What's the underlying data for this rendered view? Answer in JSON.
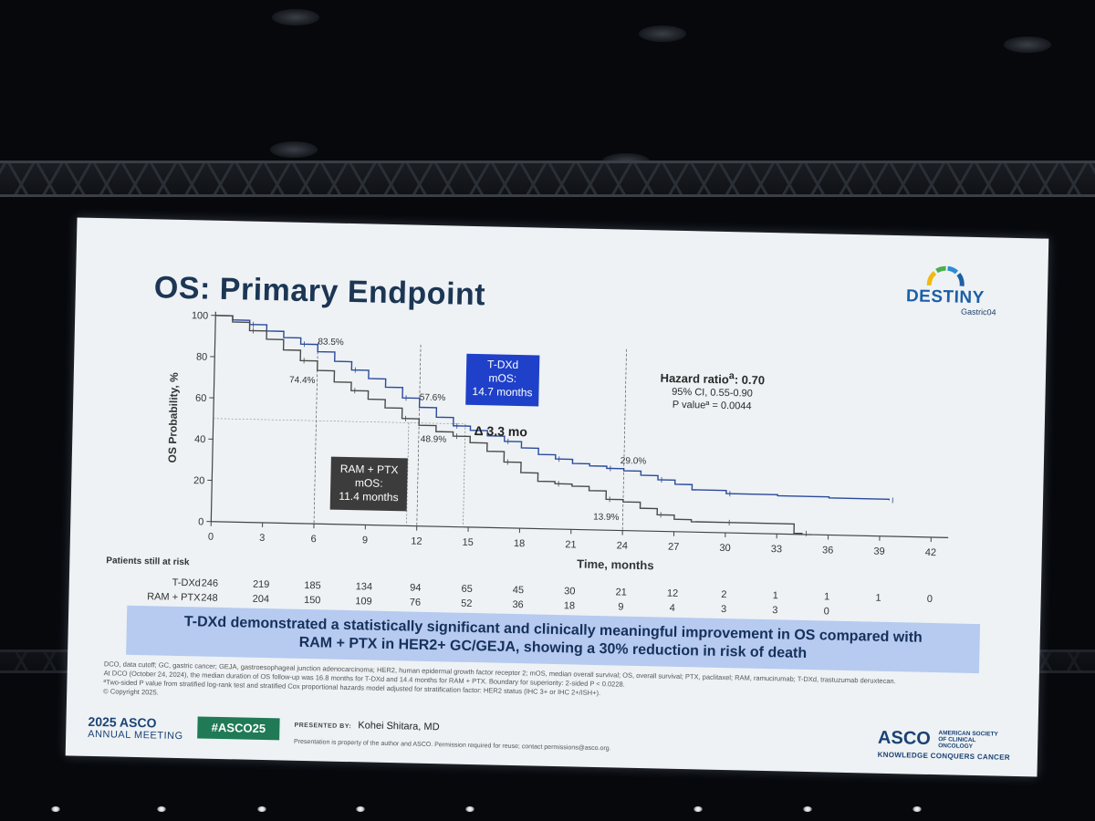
{
  "slide": {
    "title": "OS: Primary Endpoint",
    "logo": {
      "name": "DESTINY",
      "sub": "Gastric04"
    },
    "tdxd_callout": {
      "name": "T-DXd",
      "label": "mOS:",
      "value": "14.7 months"
    },
    "ram_callout": {
      "name": "RAM + PTX",
      "label": "mOS:",
      "value": "11.4 months"
    },
    "delta": "Δ 3.3 mo",
    "hazard": {
      "label": "Hazard ratio",
      "sup": "a",
      "value": ": 0.70",
      "ci": "95% CI, 0.55-0.90",
      "p": "P valueª = 0.0044"
    },
    "risk_table": {
      "title": "Patients still at risk",
      "rows": [
        {
          "label": "T-DXd",
          "values": [
            "246",
            "219",
            "185",
            "134",
            "94",
            "65",
            "45",
            "30",
            "21",
            "12",
            "2",
            "1",
            "1",
            "1",
            "0"
          ]
        },
        {
          "label": "RAM + PTX",
          "values": [
            "248",
            "204",
            "150",
            "109",
            "76",
            "52",
            "36",
            "18",
            "9",
            "4",
            "3",
            "3",
            "0",
            "",
            ""
          ]
        }
      ]
    },
    "banner": {
      "line1": "T-DXd demonstrated a statistically significant and clinically meaningful improvement in OS compared with",
      "line2": "RAM + PTX in HER2+ GC/GEJA, showing a 30% reduction in risk of death"
    },
    "footnotes": [
      "DCO, data cutoff; GC, gastric cancer; GEJA, gastroesophageal junction adenocarcinoma; HER2, human epidermal growth factor receptor 2; mOS, median overall survival; OS, overall survival; PTX, paclitaxel; RAM, ramucirumab; T-DXd, trastuzumab deruxtecan.",
      "At DCO (October 24, 2024), the median duration of OS follow-up was 16.8 months for T-DXd and 14.4 months for RAM + PTX. Boundary for superiority: 2-sided P < 0.0228.",
      "ªTwo-sided P value from stratified log-rank test and stratified Cox proportional hazards model adjusted for stratification factor: HER2 status (IHC 3+ or IHC 2+/ISH+).",
      "© Copyright 2025."
    ],
    "footer": {
      "meeting_year": "2025 ASCO",
      "meeting_sub": "ANNUAL MEETING",
      "hashtag": "#ASCO25",
      "presented_by_label": "PRESENTED BY:",
      "presenter": "Kohei Shitara, MD",
      "property_note": "Presentation is property of the author and ASCO. Permission required for reuse; contact permissions@asco.org.",
      "brand": "ASCO",
      "brand_full": "AMERICAN SOCIETY OF CLINICAL ONCOLOGY",
      "tagline": "KNOWLEDGE CONQUERS CANCER"
    }
  },
  "chart_data": {
    "type": "line",
    "title": "",
    "xlabel": "Time, months",
    "ylabel": "OS Probability, %",
    "xlim": [
      0,
      43
    ],
    "ylim": [
      0,
      100
    ],
    "xticks": [
      0,
      3,
      6,
      9,
      12,
      15,
      18,
      21,
      24,
      27,
      30,
      33,
      36,
      39,
      42
    ],
    "yticks": [
      0,
      20,
      40,
      60,
      80,
      100
    ],
    "grid": false,
    "series": [
      {
        "name": "T-DXd",
        "color": "#2c4a9a",
        "x": [
          0,
          1,
          2,
          3,
          4,
          5,
          6,
          7,
          8,
          9,
          10,
          11,
          12,
          13,
          14,
          15,
          16,
          17,
          18,
          19,
          20,
          21,
          22,
          23,
          24,
          25,
          26,
          27,
          28,
          30,
          33,
          36,
          39.5
        ],
        "y": [
          100,
          98,
          96,
          93,
          90,
          87,
          83.5,
          79,
          75,
          71,
          67,
          62,
          57.6,
          53,
          49,
          47,
          44.5,
          42,
          39,
          36,
          34,
          32,
          31,
          30,
          29,
          27,
          25,
          23,
          20.5,
          19,
          18.5,
          18,
          17.5
        ]
      },
      {
        "name": "RAM + PTX",
        "color": "#4a4a4a",
        "x": [
          0,
          1,
          2,
          3,
          4,
          5,
          6,
          7,
          8,
          9,
          10,
          11,
          12,
          13,
          14,
          15,
          16,
          17,
          18,
          19,
          20,
          21,
          22,
          23,
          24,
          25,
          26,
          27,
          28,
          30,
          33,
          34,
          34.5
        ],
        "y": [
          100,
          97,
          93,
          89,
          84,
          79,
          74.4,
          69,
          65,
          61,
          57,
          52,
          48.9,
          46,
          44,
          41,
          37,
          32,
          27,
          23,
          22,
          21,
          19,
          15,
          13.9,
          11,
          8,
          6,
          5,
          5,
          5,
          0.5,
          0.5
        ]
      }
    ],
    "annotations": [
      {
        "text": "83.5%",
        "x": 6,
        "y": 83.5,
        "series": "T-DXd"
      },
      {
        "text": "74.4%",
        "x": 6,
        "y": 74.4,
        "series": "RAM + PTX"
      },
      {
        "text": "57.6%",
        "x": 12,
        "y": 57.6,
        "series": "T-DXd"
      },
      {
        "text": "48.9%",
        "x": 12,
        "y": 48.9,
        "series": "RAM + PTX"
      },
      {
        "text": "29.0%",
        "x": 24,
        "y": 29.0,
        "series": "T-DXd"
      },
      {
        "text": "13.9%",
        "x": 24,
        "y": 13.9,
        "series": "RAM + PTX"
      }
    ],
    "median_lines": [
      11.4,
      14.7
    ],
    "median_level": 50
  }
}
